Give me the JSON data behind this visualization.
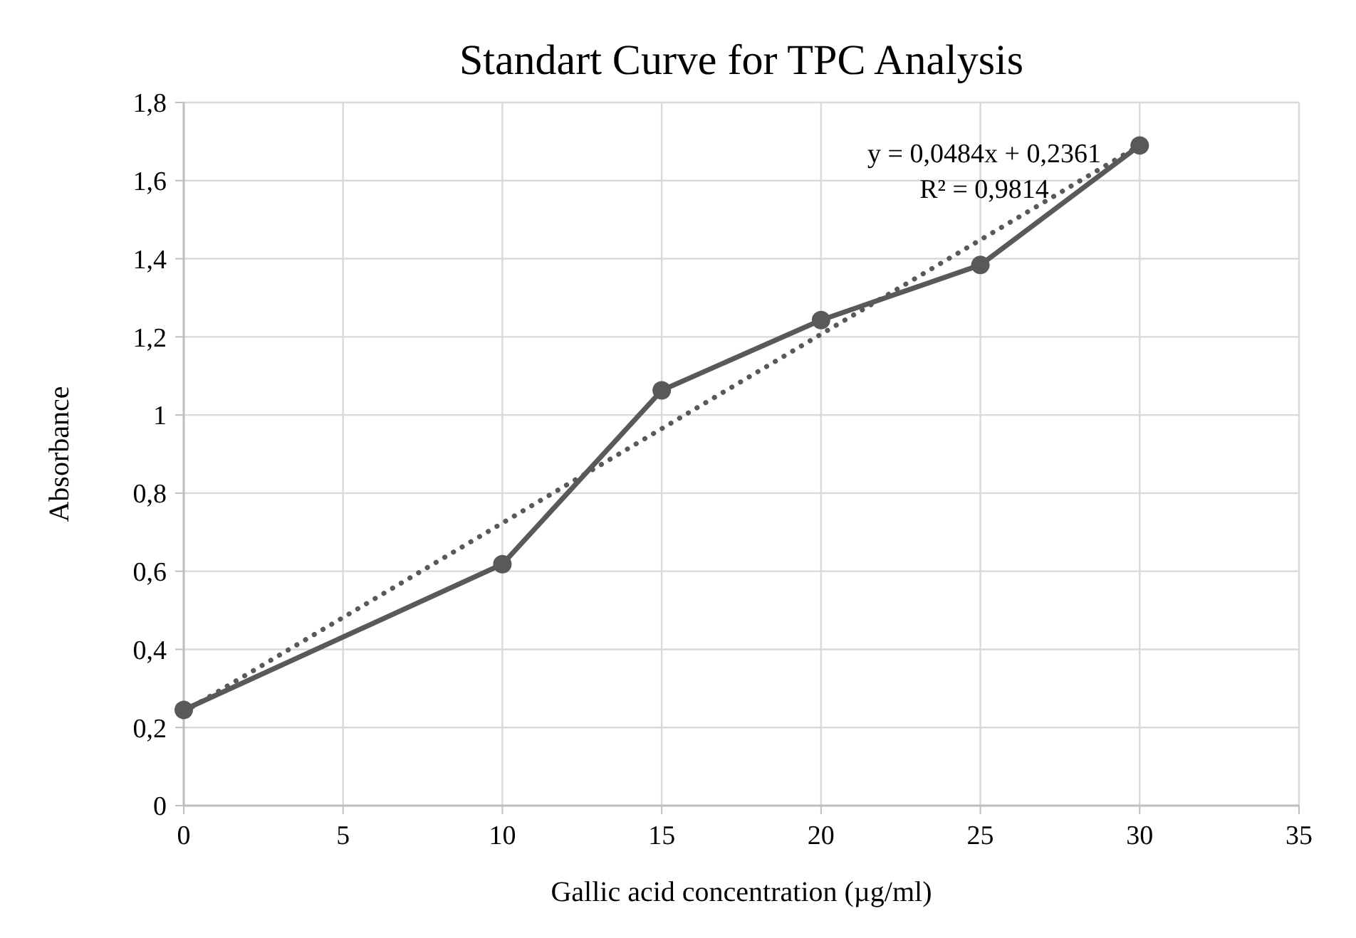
{
  "chart_data": {
    "type": "line",
    "title": "Standart Curve for TPC Analysis",
    "xlabel": "Gallic acid concentration (µg/ml)",
    "ylabel": "Absorbance",
    "x": [
      0,
      10,
      15,
      20,
      25,
      30
    ],
    "series": [
      {
        "color": "#595959",
        "values": [
          0.245,
          0.618,
          1.063,
          1.243,
          1.384,
          1.69
        ],
        "marker": "circle",
        "line_style": "solid"
      },
      {
        "type": "line",
        "color": "#595959",
        "x": [
          0,
          30
        ],
        "values": [
          0.24,
          1.69
        ],
        "marker": "none",
        "line_style": "dotted"
      }
    ],
    "xlim": [
      0,
      35
    ],
    "xticks": [
      0,
      5,
      10,
      15,
      20,
      25,
      30,
      35
    ],
    "ylim": [
      0,
      1.8
    ],
    "yticks": [
      {
        "value": 0,
        "label": "0"
      },
      {
        "value": 0.2,
        "label": "0,2"
      },
      {
        "value": 0.4,
        "label": "0,4"
      },
      {
        "value": 0.6,
        "label": "0,6"
      },
      {
        "value": 0.8,
        "label": "0,8"
      },
      {
        "value": 1,
        "label": "1"
      },
      {
        "value": 1.2,
        "label": "1,2"
      },
      {
        "value": 1.4,
        "label": "1,4"
      },
      {
        "value": 1.6,
        "label": "1,6"
      },
      {
        "value": 1.8,
        "label": "1,8"
      }
    ],
    "grid": true,
    "annotations": [
      "y = 0,0484x + 0,2361",
      "R² = 0,9814"
    ]
  }
}
